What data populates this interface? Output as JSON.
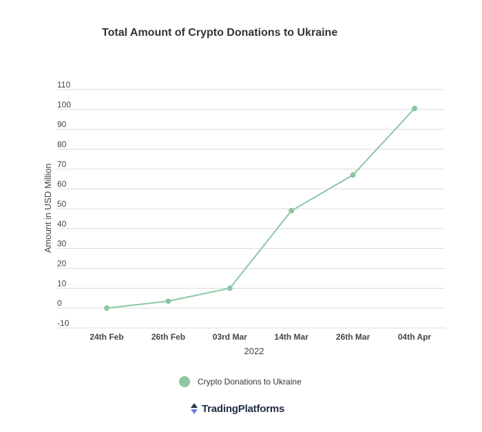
{
  "chart_data": {
    "type": "line",
    "title": "Total Amount of Crypto Donations to Ukraine",
    "xlabel": "2022",
    "ylabel": "Amount in USD Million",
    "categories": [
      "24th Feb",
      "26th Feb",
      "03rd Mar",
      "14th Mar",
      "26th Mar",
      "04th Apr"
    ],
    "series": [
      {
        "name": "Crypto Donations to Ukraine",
        "values": [
          0,
          3.5,
          10,
          49,
          67,
          100.5
        ]
      }
    ],
    "ylim": [
      -10,
      110
    ],
    "yticks": [
      -10,
      0,
      10,
      20,
      30,
      40,
      50,
      60,
      70,
      80,
      90,
      100,
      110
    ],
    "grid": true,
    "legend": "bottom",
    "color": "#8ec6a4"
  },
  "brand": {
    "name": "TradingPlatforms",
    "icon": "up-down-arrows-icon"
  }
}
